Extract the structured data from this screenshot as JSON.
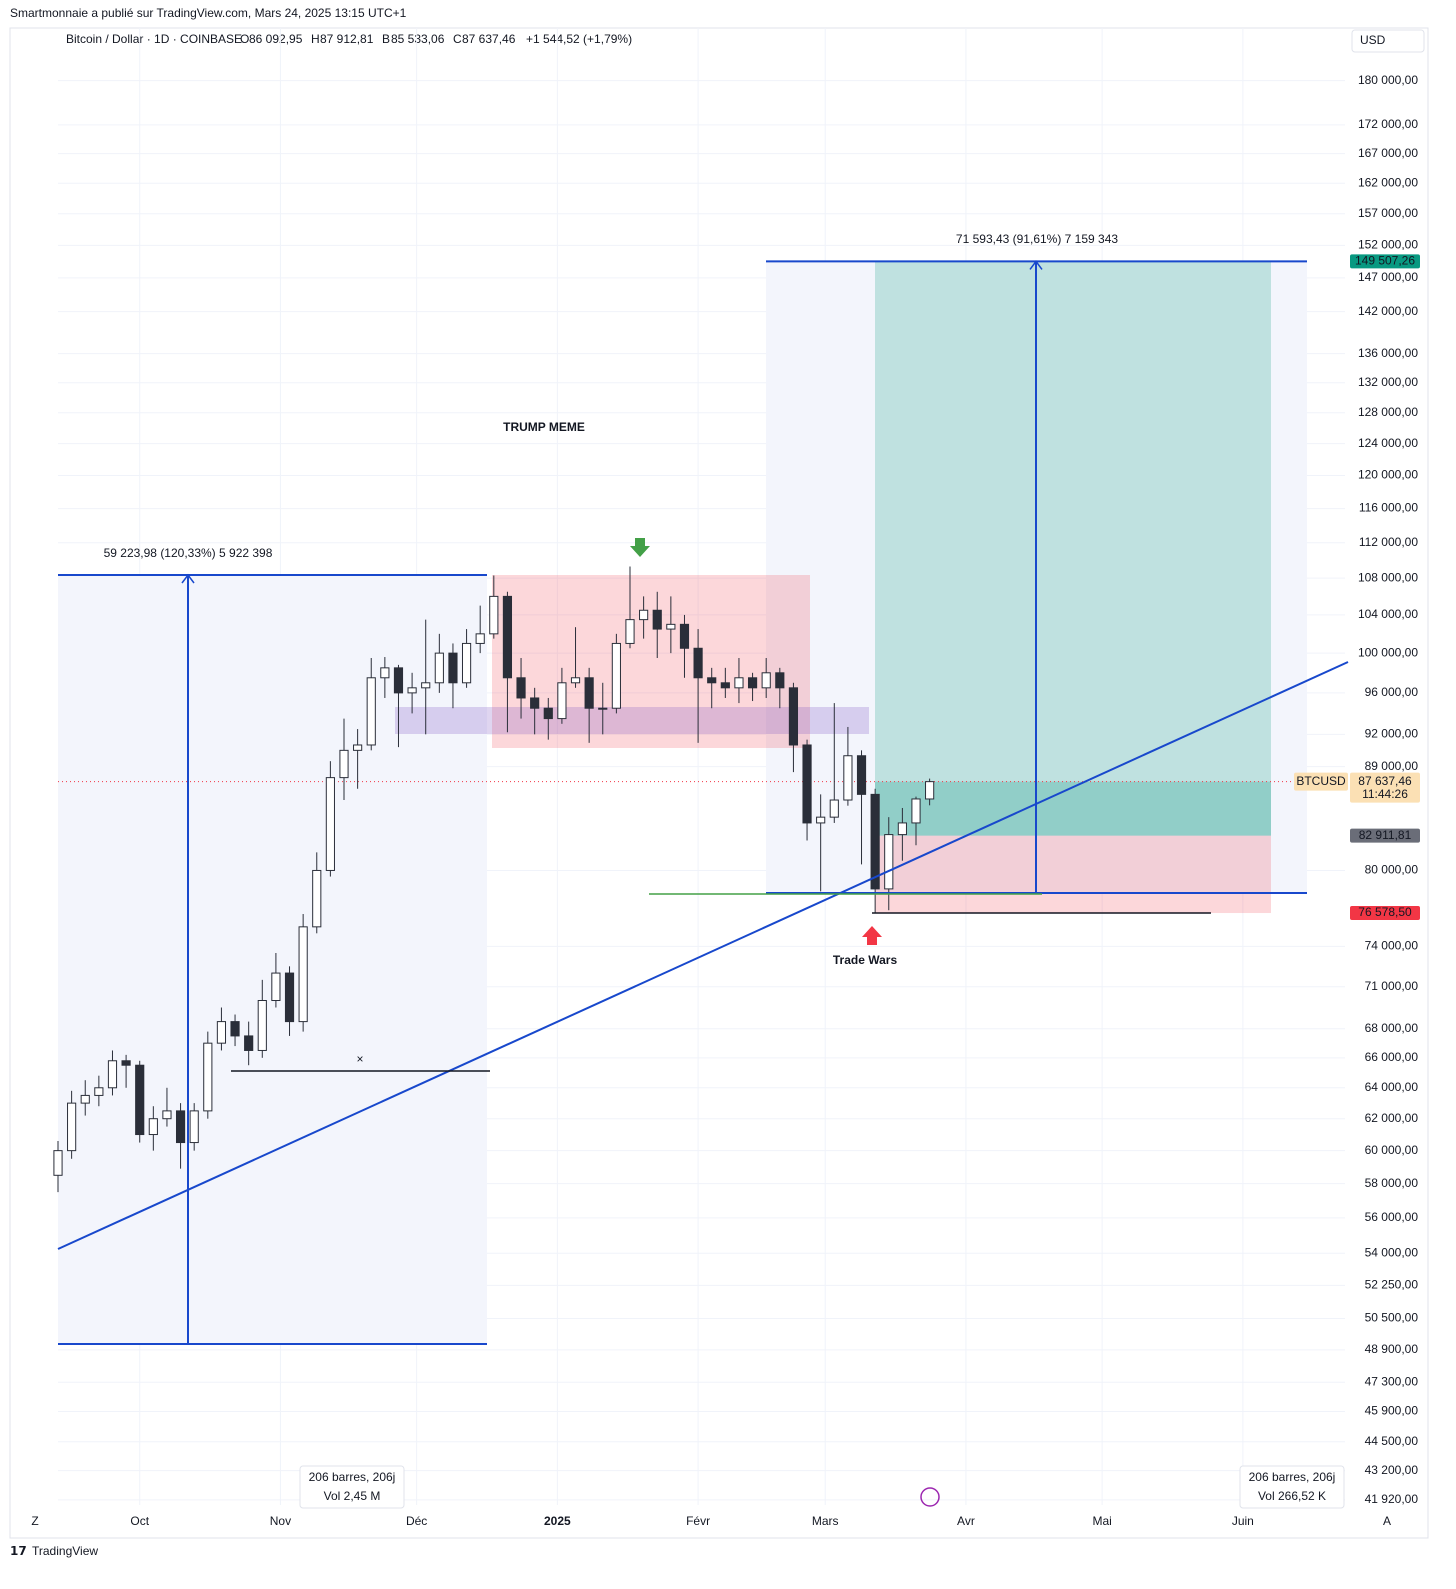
{
  "chart_data": {
    "type": "candlestick",
    "publisher": "Smartmonnaie a publié sur TradingView.com, Mars 24, 2025 13:15 UTC+1",
    "header": {
      "symbol": "Bitcoin / Dollar · 1D · COINBASE",
      "open_label": "O",
      "open": "86 092,95",
      "high_label": "H",
      "high": "87 912,81",
      "low_label": "B",
      "low": "85 533,06",
      "close_label": "C",
      "close": "87 637,46",
      "change": "+1 544,52 (+1,79%)"
    },
    "currency": "USD",
    "logo": "TradingView",
    "corner_left": "Z",
    "corner_right": "A",
    "log_scale": true,
    "grid": true,
    "up_color": "#ffffff",
    "down_color": "#2a2e39",
    "outline_color": "#2a2e39",
    "x": [
      -18,
      -15,
      -12,
      -9,
      -6,
      -3,
      0,
      3,
      6,
      9,
      12,
      15,
      18,
      21,
      24,
      27,
      30,
      33,
      36,
      39,
      42,
      45,
      48,
      51,
      54,
      57,
      60,
      63,
      66,
      69,
      72,
      75,
      78,
      81,
      84,
      87,
      90,
      93,
      96,
      99,
      102,
      105,
      108,
      111,
      114,
      117,
      120,
      123,
      126,
      129,
      132,
      135,
      138,
      141,
      144,
      147,
      150,
      153,
      156,
      159,
      162,
      165,
      168,
      171,
      174
    ],
    "open": [
      58500,
      60000,
      63000,
      63500,
      64000,
      65800,
      65500,
      61000,
      62000,
      62500,
      60500,
      62500,
      67000,
      68500,
      67500,
      66500,
      70000,
      72000,
      68500,
      75500,
      80000,
      88000,
      90500,
      91000,
      97500,
      98500,
      96000,
      96500,
      97000,
      100000,
      97000,
      101000,
      102000,
      106000,
      97500,
      95500,
      94500,
      93500,
      97000,
      97500,
      94500,
      94500,
      101000,
      103500,
      104500,
      102500,
      103000,
      100500,
      97500,
      97000,
      96500,
      97500,
      96500,
      98000,
      96500,
      91000,
      84000,
      84500,
      86000,
      90000,
      86500,
      78500,
      83000,
      84000,
      86092.95
    ],
    "high": [
      60600,
      63800,
      64500,
      64800,
      66500,
      66200,
      65800,
      62800,
      64000,
      63000,
      63000,
      67800,
      69500,
      69000,
      68500,
      71500,
      73500,
      72500,
      76500,
      81500,
      89500,
      93500,
      92500,
      99500,
      99600,
      98800,
      98000,
      103500,
      102000,
      101000,
      102500,
      105000,
      108300,
      106500,
      99500,
      96500,
      95500,
      98500,
      102700,
      98500,
      97000,
      102000,
      109300,
      106000,
      106500,
      106000,
      104000,
      102500,
      98500,
      98500,
      99500,
      98000,
      99500,
      98500,
      97000,
      91500,
      86500,
      95000,
      92700,
      90500,
      87000,
      84500,
      85300,
      86300,
      87912.81
    ],
    "low": [
      57500,
      59500,
      62200,
      62800,
      63500,
      64000,
      60500,
      60000,
      61500,
      58900,
      60000,
      62000,
      66500,
      66800,
      65500,
      66000,
      69500,
      67500,
      67800,
      75000,
      79500,
      86000,
      87000,
      90500,
      95500,
      90800,
      94000,
      92000,
      96000,
      94500,
      96500,
      100000,
      101500,
      92200,
      93500,
      92000,
      91500,
      93000,
      96500,
      91200,
      92000,
      94000,
      100500,
      101500,
      99500,
      100000,
      97500,
      91200,
      94500,
      95500,
      95000,
      95200,
      95500,
      94500,
      88500,
      82500,
      78300,
      84000,
      85500,
      80500,
      76600,
      76800,
      80800,
      82100,
      85533.06
    ],
    "close": [
      60000,
      63000,
      63500,
      64000,
      65800,
      65500,
      61000,
      62000,
      62500,
      60500,
      62500,
      67000,
      68500,
      67500,
      66500,
      70000,
      72000,
      68500,
      75500,
      80000,
      88000,
      90500,
      91000,
      97500,
      98500,
      96000,
      96500,
      97000,
      100000,
      97000,
      101000,
      102000,
      106000,
      97500,
      95500,
      94500,
      93500,
      97000,
      97500,
      94500,
      94500,
      101000,
      103500,
      104500,
      102500,
      103000,
      100500,
      97500,
      97000,
      96500,
      97500,
      96500,
      98000,
      96500,
      91000,
      84000,
      84500,
      86000,
      90000,
      86500,
      78500,
      83000,
      84000,
      86092.95,
      87637.46
    ],
    "xlim": [
      -18,
      265.5
    ],
    "xticks": [
      {
        "value": 0,
        "label": "Oct"
      },
      {
        "value": 31,
        "label": "Nov"
      },
      {
        "value": 61,
        "label": "Déc"
      },
      {
        "value": 92,
        "label": "2025",
        "bold": true
      },
      {
        "value": 123,
        "label": "Févr"
      },
      {
        "value": 151,
        "label": "Mars"
      },
      {
        "value": 182,
        "label": "Avr"
      },
      {
        "value": 212,
        "label": "Mai"
      },
      {
        "value": 243,
        "label": "Juin"
      }
    ],
    "ylim": [
      41700,
      190000
    ],
    "yticks": [
      {
        "value": 180000,
        "label": "180 000,00"
      },
      {
        "value": 172000,
        "label": "172 000,00"
      },
      {
        "value": 167000,
        "label": "167 000,00"
      },
      {
        "value": 162000,
        "label": "162 000,00"
      },
      {
        "value": 157000,
        "label": "157 000,00"
      },
      {
        "value": 152000,
        "label": "152 000,00"
      },
      {
        "value": 147000,
        "label": "147 000,00"
      },
      {
        "value": 142000,
        "label": "142 000,00"
      },
      {
        "value": 136000,
        "label": "136 000,00"
      },
      {
        "value": 132000,
        "label": "132 000,00"
      },
      {
        "value": 128000,
        "label": "128 000,00"
      },
      {
        "value": 124000,
        "label": "124 000,00"
      },
      {
        "value": 120000,
        "label": "120 000,00"
      },
      {
        "value": 116000,
        "label": "116 000,00"
      },
      {
        "value": 112000,
        "label": "112 000,00"
      },
      {
        "value": 108000,
        "label": "108 000,00"
      },
      {
        "value": 104000,
        "label": "104 000,00"
      },
      {
        "value": 100000,
        "label": "100 000,00"
      },
      {
        "value": 96000,
        "label": "96 000,00"
      },
      {
        "value": 92000,
        "label": "92 000,00"
      },
      {
        "value": 89000,
        "label": "89 000,00"
      },
      {
        "value": 80000,
        "label": "80 000,00"
      },
      {
        "value": 74000,
        "label": "74 000,00"
      },
      {
        "value": 71000,
        "label": "71 000,00"
      },
      {
        "value": 68000,
        "label": "68 000,00"
      },
      {
        "value": 66000,
        "label": "66 000,00"
      },
      {
        "value": 64000,
        "label": "64 000,00"
      },
      {
        "value": 62000,
        "label": "62 000,00"
      },
      {
        "value": 60000,
        "label": "60 000,00"
      },
      {
        "value": 58000,
        "label": "58 000,00"
      },
      {
        "value": 56000,
        "label": "56 000,00"
      },
      {
        "value": 54000,
        "label": "54 000,00"
      },
      {
        "value": 52250,
        "label": "52 250,00"
      },
      {
        "value": 50500,
        "label": "50 500,00"
      },
      {
        "value": 48900,
        "label": "48 900,00"
      },
      {
        "value": 47300,
        "label": "47 300,00"
      },
      {
        "value": 45900,
        "label": "45 900,00"
      },
      {
        "value": 44500,
        "label": "44 500,00"
      },
      {
        "value": 43200,
        "label": "43 200,00"
      },
      {
        "value": 41920,
        "label": "41 920,00"
      }
    ],
    "price_labels": {
      "target": {
        "value": 149507.26,
        "label": "149 507,26",
        "color": "#089981"
      },
      "current": {
        "name": "BTCUSD",
        "value": 87637.46,
        "label": "87 637,46",
        "countdown": "11:44:26",
        "color": "#fbe0b4"
      },
      "entry": {
        "value": 82911.81,
        "label": "82 911,81",
        "color": "#6a6d78"
      },
      "stop": {
        "value": 76578.5,
        "label": "76 578,50",
        "color": "#f23645"
      }
    },
    "annotations": {
      "measure_left": "59 223,98 (120,33%) 5 922 398",
      "measure_right": "71 593,43 (91,61%) 7 159 343",
      "trump": "TRUMP MEME",
      "trade_wars": "Trade Wars",
      "bars_left": "206 barres, 206j",
      "vol_left": "Vol 2,45 M",
      "bars_right": "206 barres, 206j",
      "vol_right": "Vol 266,52 K"
    }
  }
}
